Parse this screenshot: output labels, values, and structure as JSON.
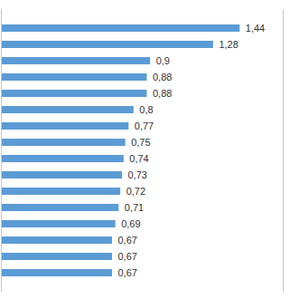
{
  "chart_data": {
    "type": "bar",
    "orientation": "horizontal",
    "categories": [
      null,
      null,
      null,
      null,
      null,
      null,
      null,
      null,
      null,
      null,
      null,
      null,
      null,
      null,
      null,
      null
    ],
    "values": [
      1.44,
      1.28,
      0.9,
      0.88,
      0.88,
      0.8,
      0.77,
      0.75,
      0.74,
      0.73,
      0.72,
      0.71,
      0.69,
      0.67,
      0.67,
      0.67
    ],
    "value_labels": [
      "1,44",
      "1,28",
      "0,9",
      "0,88",
      "0,88",
      "0,8",
      "0,77",
      "0,75",
      "0,74",
      "0,73",
      "0,72",
      "0,71",
      "0,69",
      "0,67",
      "0,67",
      "0,67"
    ],
    "color": "#5b9bd5",
    "xlim": [
      0,
      1.7
    ],
    "xticks": [],
    "data_labels": true,
    "tick_labels": false
  }
}
